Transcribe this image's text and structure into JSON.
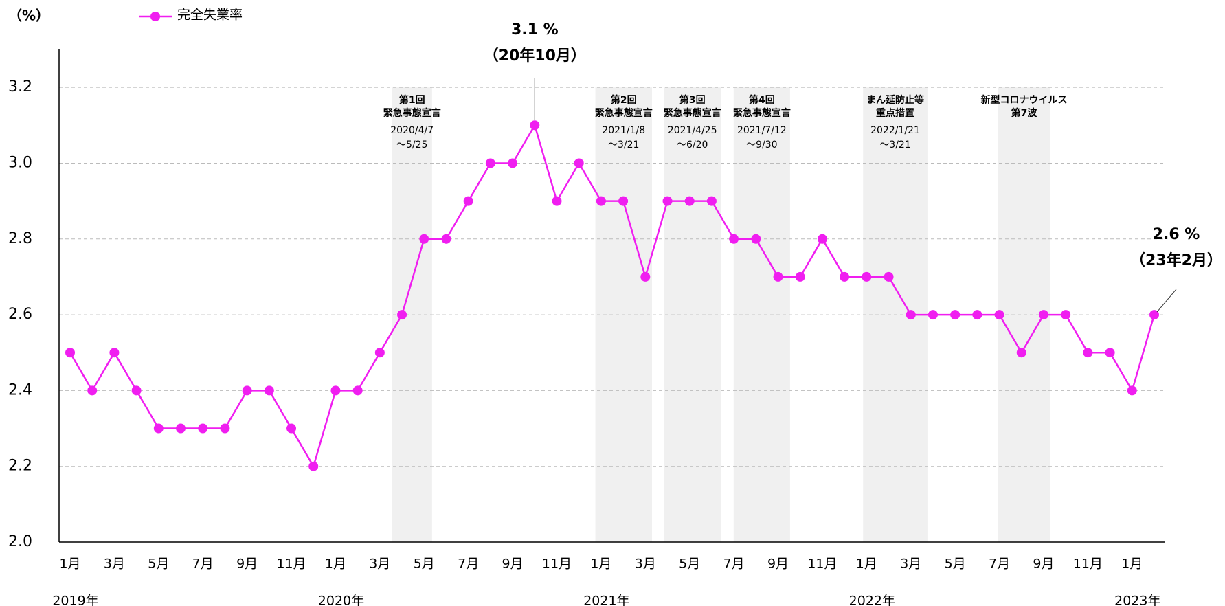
{
  "chart_data": {
    "type": "line",
    "y_unit": "（%）",
    "categories": [
      "1月",
      null,
      "3月",
      null,
      "5月",
      null,
      "7月",
      null,
      "9月",
      null,
      "11月",
      null,
      "1月",
      null,
      "3月",
      null,
      "5月",
      null,
      "7月",
      null,
      "9月",
      null,
      "11月",
      null,
      "1月",
      null,
      "3月",
      null,
      "5月",
      null,
      "7月",
      null,
      "9月",
      null,
      "11月",
      null,
      "1月",
      null,
      "3月",
      null,
      "5月",
      null,
      "7月",
      null,
      "9月",
      null,
      "11月",
      null,
      "1月",
      null
    ],
    "year_labels": [
      "2019年",
      "2020年",
      "2021年",
      "2022年",
      "2023年"
    ],
    "series": [
      {
        "name": "完全失業率",
        "color": "#f01ef0",
        "values": [
          2.5,
          2.4,
          2.5,
          2.4,
          2.3,
          2.3,
          2.3,
          2.3,
          2.4,
          2.4,
          2.3,
          2.2,
          2.4,
          2.4,
          2.5,
          2.6,
          2.8,
          2.8,
          2.9,
          3.0,
          3.0,
          3.1,
          2.9,
          3.0,
          2.9,
          2.9,
          2.7,
          2.9,
          2.9,
          2.9,
          2.8,
          2.8,
          2.7,
          2.7,
          2.8,
          2.7,
          2.7,
          2.7,
          2.6,
          2.6,
          2.6,
          2.6,
          2.6,
          2.5,
          2.6,
          2.6,
          2.5,
          2.5,
          2.4,
          2.6
        ]
      }
    ],
    "ylim": [
      2.0,
      3.3
    ],
    "yticks": [
      {
        "value": 2.0,
        "label": "2.0"
      },
      2.2,
      2.4,
      2.6,
      2.8,
      {
        "value": 3.0,
        "label": "3.0"
      },
      3.2
    ],
    "grid": true,
    "annotations": [
      {
        "index": 21,
        "lines": [
          "3.1 %",
          "（20年10月）"
        ]
      },
      {
        "index": 49,
        "lines": [
          "2.6 %",
          "（23年2月）"
        ]
      }
    ],
    "periods": [
      {
        "x_span": [
          14.55,
          16.36
        ],
        "title": [
          "第1回",
          "緊急事態宣言"
        ],
        "dates": [
          "2020/4/7",
          "～5/25"
        ]
      },
      {
        "x_span": [
          23.74,
          26.3
        ],
        "title": [
          "第2回",
          "緊急事態宣言"
        ],
        "dates": [
          "2021/1/8",
          "～3/21"
        ]
      },
      {
        "x_span": [
          26.83,
          29.42
        ],
        "title": [
          "第3回",
          "緊急事態宣言"
        ],
        "dates": [
          "2021/4/25",
          "～6/20"
        ]
      },
      {
        "x_span": [
          29.99,
          32.54
        ],
        "title": [
          "第4回",
          "緊急事態宣言"
        ],
        "dates": [
          "2021/7/12",
          "～9/30"
        ]
      },
      {
        "x_span": [
          35.84,
          38.75
        ],
        "title": [
          "まん延防止等",
          "重点措置"
        ],
        "dates": [
          "2022/1/21",
          "～3/21"
        ]
      },
      {
        "x_span": [
          41.94,
          44.29
        ],
        "title": [
          "新型コロナウイルス",
          "第7波"
        ],
        "dates": []
      }
    ]
  }
}
